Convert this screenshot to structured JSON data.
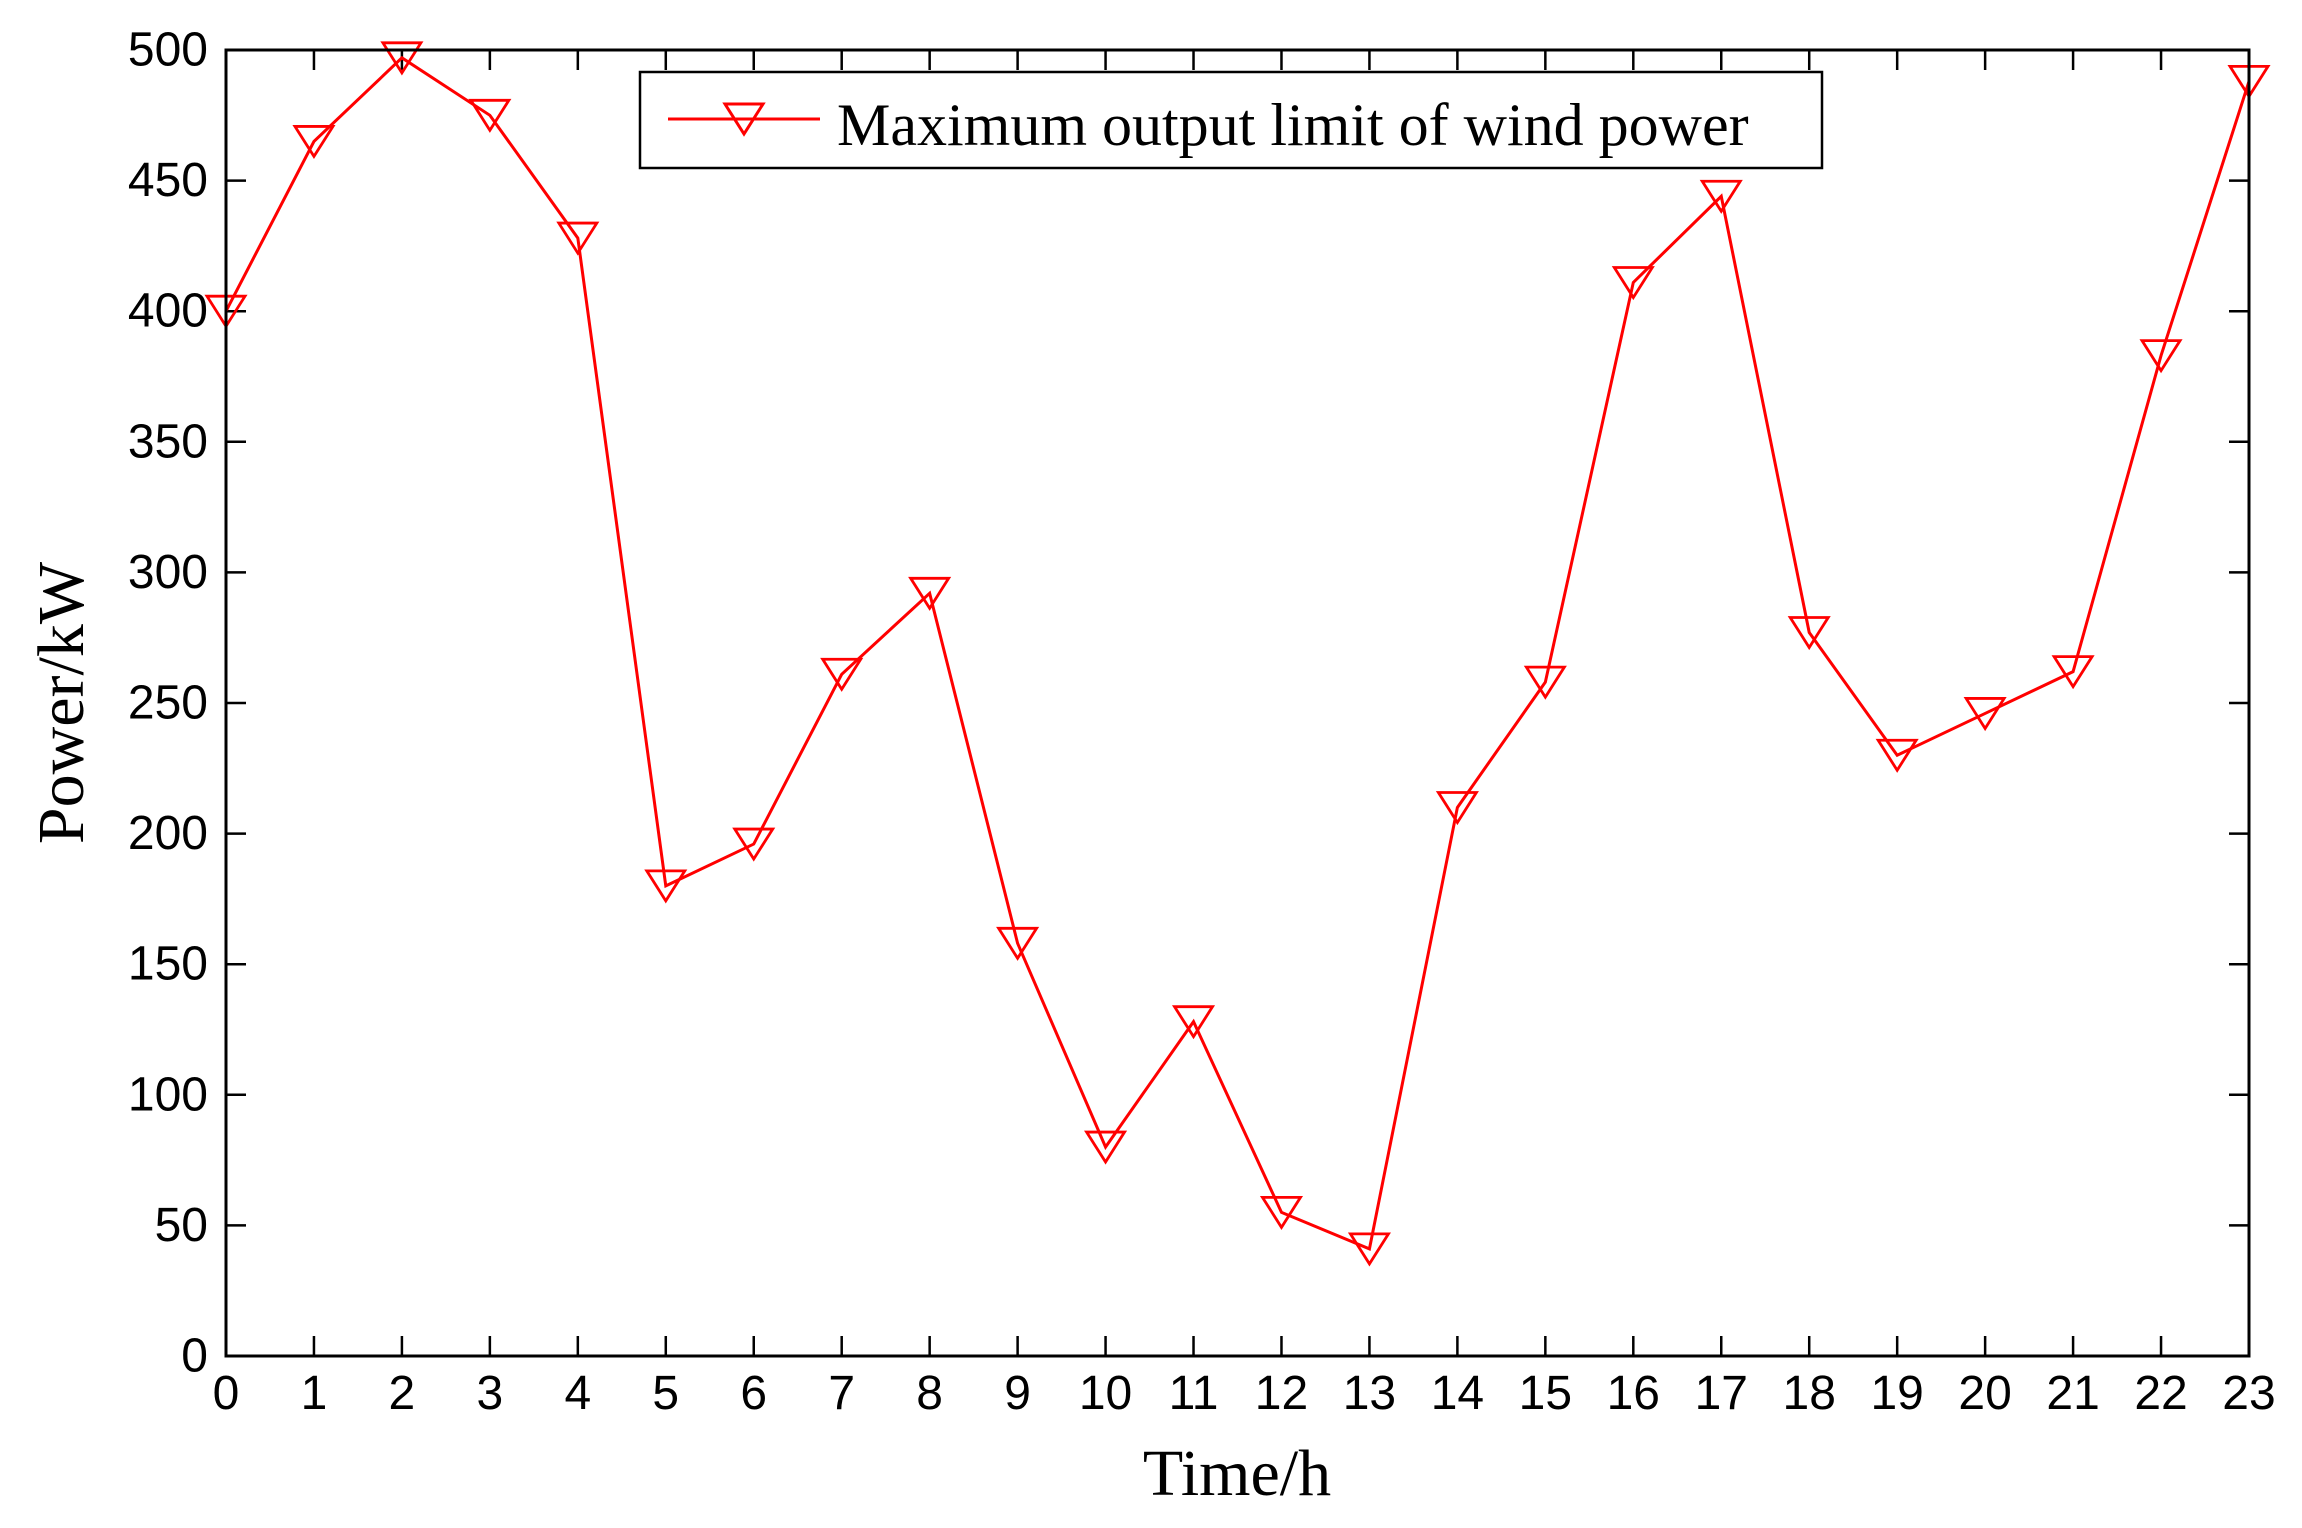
{
  "figure": {
    "background_color": "#ffffff",
    "axis_color": "#000000",
    "accent_color": "#ff0000"
  },
  "chart_data": {
    "type": "line",
    "title": "",
    "xlabel": "Time/h",
    "ylabel": "Power/kW",
    "marker": "triangle-down-hollow",
    "marker_icon": "triangle-down-icon",
    "line_color": "#ff0000",
    "grid": false,
    "legend_position": "top-center-inside",
    "xlim": [
      0,
      23
    ],
    "ylim": [
      0,
      500
    ],
    "xticks": [
      0,
      1,
      2,
      3,
      4,
      5,
      6,
      7,
      8,
      9,
      10,
      11,
      12,
      13,
      14,
      15,
      16,
      17,
      18,
      19,
      20,
      21,
      22,
      23
    ],
    "yticks": [
      0,
      50,
      100,
      150,
      200,
      250,
      300,
      350,
      400,
      450,
      500
    ],
    "x": [
      0,
      1,
      2,
      3,
      4,
      5,
      6,
      7,
      8,
      9,
      10,
      11,
      12,
      13,
      14,
      15,
      16,
      17,
      18,
      19,
      20,
      21,
      22,
      23
    ],
    "series": [
      {
        "name": "Maximum output limit of wind power",
        "values": [
          400,
          465,
          497,
          475,
          428,
          180,
          196,
          261,
          292,
          158,
          80,
          128,
          55,
          41,
          210,
          258,
          411,
          444,
          277,
          230,
          246,
          262,
          383,
          488
        ]
      }
    ]
  }
}
